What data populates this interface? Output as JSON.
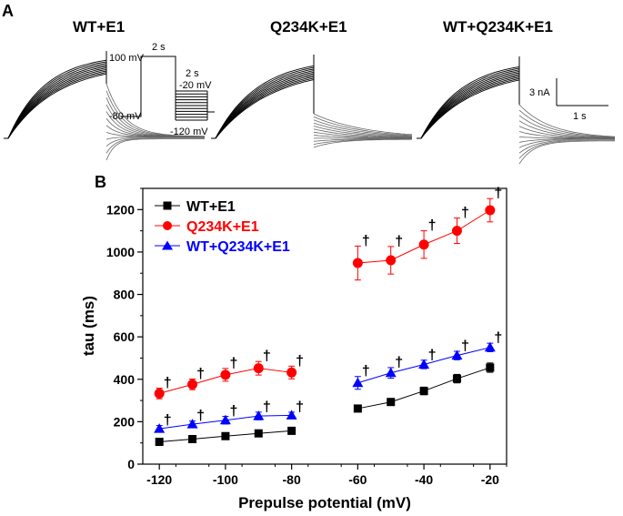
{
  "panel_a": {
    "label": "A",
    "titles": [
      "WT+E1",
      "Q234K+E1",
      "WT+Q234K+E1"
    ],
    "protocol": {
      "v_hold": "-80 mV",
      "v_pre": "100 mV",
      "t_pre": "2 s",
      "t_test": "2 s",
      "v_test_top": "-20 mV",
      "v_test_bottom": "-120 mV"
    },
    "scalebar": {
      "current": "3 nA",
      "time": "1 s"
    }
  },
  "panel_b": {
    "label": "B"
  },
  "chart_data": {
    "type": "line",
    "title": "",
    "xlabel": "Prepulse potential (mV)",
    "ylabel": "tau (ms)",
    "xlim": [
      -125,
      -15
    ],
    "ylim": [
      0,
      1300
    ],
    "xticks": [
      -120,
      -100,
      -80,
      -60,
      -40,
      -20
    ],
    "yticks": [
      0,
      200,
      400,
      600,
      800,
      1000,
      1200
    ],
    "grid": false,
    "legend": "top-left",
    "significance_marker": "†",
    "series": [
      {
        "name": "WT+E1",
        "color": "#000000",
        "marker": "square",
        "segments": [
          {
            "x": [
              -120,
              -110,
              -100,
              -90,
              -80
            ],
            "y": [
              105,
              118,
              132,
              145,
              157
            ],
            "err": [
              8,
              8,
              10,
              10,
              10
            ],
            "sig": [
              false,
              false,
              false,
              false,
              false
            ]
          },
          {
            "x": [
              -60,
              -50,
              -40,
              -30,
              -20
            ],
            "y": [
              262,
              293,
              345,
              403,
              455
            ],
            "err": [
              15,
              15,
              18,
              20,
              22
            ],
            "sig": [
              false,
              false,
              false,
              false,
              false
            ]
          }
        ]
      },
      {
        "name": "Q234K+E1",
        "color": "#ff0000",
        "marker": "circle",
        "segments": [
          {
            "x": [
              -120,
              -110,
              -100,
              -90,
              -80
            ],
            "y": [
              333,
              376,
              421,
              452,
              432
            ],
            "err": [
              25,
              25,
              30,
              32,
              30
            ],
            "sig": [
              true,
              true,
              true,
              true,
              true
            ]
          },
          {
            "x": [
              -60,
              -50,
              -40,
              -30,
              -20
            ],
            "y": [
              948,
              961,
              1035,
              1100,
              1197
            ],
            "err": [
              80,
              65,
              65,
              60,
              55
            ],
            "sig": [
              true,
              true,
              true,
              true,
              true
            ]
          }
        ]
      },
      {
        "name": "WT+Q234K+E1",
        "color": "#0000ff",
        "marker": "triangle",
        "segments": [
          {
            "x": [
              -120,
              -110,
              -100,
              -90,
              -80
            ],
            "y": [
              167,
              188,
              207,
              227,
              230
            ],
            "err": [
              15,
              15,
              18,
              18,
              15
            ],
            "sig": [
              true,
              true,
              true,
              true,
              true
            ]
          },
          {
            "x": [
              -60,
              -50,
              -40,
              -30,
              -20
            ],
            "y": [
              383,
              430,
              470,
              512,
              550
            ],
            "err": [
              30,
              25,
              20,
              20,
              20
            ],
            "sig": [
              true,
              true,
              true,
              true,
              true
            ]
          }
        ]
      }
    ]
  }
}
